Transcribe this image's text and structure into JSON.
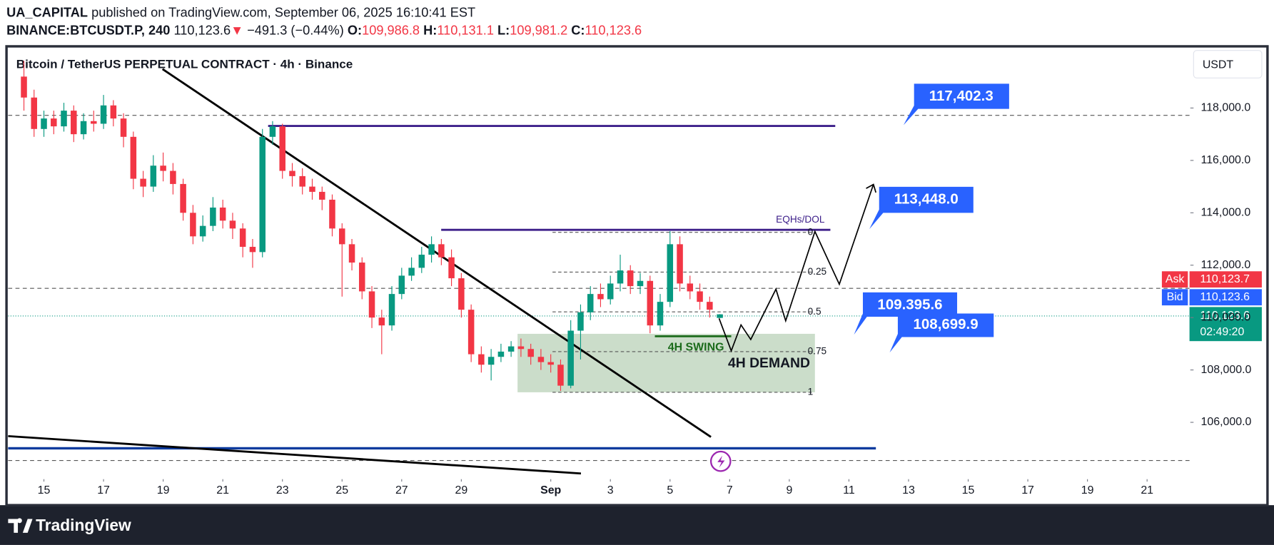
{
  "header": {
    "author": "UA_CAPITAL",
    "published": "published on TradingView.com, September 06, 2025 16:10:41 EST",
    "symbol": "BINANCE:BTCUSDT.P, 240",
    "last": "110,123.6",
    "arrow": "▼",
    "change": "−491.3 (−0.44%)",
    "o_label": "O:",
    "o": "109,986.8",
    "h_label": "H:",
    "h": "110,131.1",
    "l_label": "L:",
    "l": "109,981.2",
    "c_label": "C:",
    "c": "110,123.6"
  },
  "chart_data": {
    "type": "candlestick",
    "title": "Bitcoin / TetherUS PERPETUAL CONTRACT · 4h · Binance",
    "currency": "USDT",
    "x": [
      14.33,
      14.67,
      15,
      15.33,
      15.67,
      16,
      16.33,
      16.67,
      17,
      17.33,
      17.67,
      18,
      18.33,
      18.67,
      19,
      19.33,
      19.67,
      20,
      20.33,
      20.67,
      21,
      21.33,
      21.67,
      22,
      22.33,
      22.67,
      23,
      23.33,
      23.67,
      24,
      24.33,
      24.67,
      25,
      25.33,
      25.67,
      26,
      26.33,
      26.67,
      27,
      27.33,
      27.67,
      28,
      28.33,
      28.67,
      29,
      29.33,
      29.67,
      30,
      30.33,
      30.67,
      31,
      31.33,
      31.67,
      32,
      32.33,
      32.67,
      33,
      33.33,
      33.67,
      34,
      34.33,
      34.67,
      35,
      35.33,
      35.67,
      36,
      36.33,
      36.67,
      37,
      37.33,
      37.67
    ],
    "open": [
      119200,
      118400,
      117200,
      117600,
      117300,
      117900,
      117000,
      117500,
      117400,
      118100,
      117600,
      116900,
      115300,
      115000,
      115800,
      115600,
      115100,
      114000,
      113100,
      113500,
      114200,
      113700,
      113400,
      112700,
      112500,
      116900,
      117300,
      115600,
      115400,
      115000,
      114800,
      114500,
      113400,
      112800,
      112100,
      111000,
      110000,
      109700,
      110900,
      111600,
      111900,
      112400,
      112800,
      112300,
      111500,
      110300,
      108600,
      108200,
      108500,
      108700,
      108900,
      108800,
      108500,
      108300,
      108200,
      107400,
      109500,
      110200,
      110900,
      110700,
      111300,
      111800,
      111200,
      111400,
      109700,
      110600,
      112800,
      111300,
      111000,
      110600,
      109986.8
    ],
    "high": [
      119800,
      118700,
      117900,
      117900,
      118200,
      118100,
      117800,
      117900,
      118500,
      118300,
      117800,
      117100,
      115600,
      116200,
      116300,
      115900,
      115300,
      114300,
      113900,
      114600,
      114500,
      114000,
      113600,
      113000,
      117200,
      117500,
      117400,
      115900,
      115700,
      115300,
      115000,
      114700,
      113600,
      113000,
      112300,
      111200,
      110300,
      111200,
      111900,
      112300,
      112700,
      113100,
      113000,
      112600,
      111700,
      110500,
      108900,
      108800,
      109000,
      109100,
      109200,
      109000,
      108800,
      108600,
      108400,
      109900,
      110500,
      111200,
      111300,
      111600,
      112400,
      112000,
      111700,
      111600,
      110900,
      113300,
      113100,
      111600,
      111300,
      110800,
      110131.1
    ],
    "low": [
      117900,
      116900,
      116900,
      117000,
      117100,
      116700,
      116800,
      117100,
      117200,
      117300,
      116500,
      114900,
      114600,
      114800,
      115200,
      114700,
      113700,
      112800,
      112900,
      113300,
      113400,
      113000,
      112300,
      111900,
      112300,
      116600,
      115300,
      115000,
      114700,
      114500,
      114100,
      113100,
      110800,
      111800,
      110700,
      109600,
      108600,
      109500,
      110700,
      111400,
      111700,
      112100,
      112000,
      111200,
      110000,
      108300,
      107900,
      107600,
      108300,
      108500,
      108500,
      108200,
      108000,
      107900,
      107200,
      107300,
      108400,
      109900,
      110400,
      110500,
      111000,
      110900,
      110900,
      109400,
      109500,
      110400,
      111000,
      110700,
      110300,
      110000,
      109981.2
    ],
    "close": [
      118400,
      117200,
      117600,
      117300,
      117900,
      117000,
      117500,
      117400,
      118100,
      117600,
      116900,
      115300,
      115000,
      115800,
      115600,
      115100,
      114000,
      113100,
      113500,
      114200,
      113700,
      113400,
      112700,
      112500,
      116900,
      117300,
      115600,
      115400,
      115000,
      114800,
      114500,
      113400,
      112800,
      112100,
      111000,
      110000,
      109700,
      110900,
      111600,
      111900,
      112400,
      112800,
      112300,
      111500,
      110300,
      108600,
      108200,
      108500,
      108700,
      108900,
      108800,
      108500,
      108300,
      108200,
      107400,
      109500,
      110200,
      110900,
      110700,
      111300,
      111800,
      111200,
      111400,
      109700,
      110600,
      112800,
      111300,
      111000,
      110600,
      110300,
      110123.6
    ],
    "colors": {
      "up": "#089981",
      "down": "#f23645"
    },
    "xlim": [
      13.8,
      53.45
    ],
    "xticks": [
      15,
      17,
      19,
      21,
      23,
      25,
      27,
      29,
      {
        "value": 32,
        "label": "Sep"
      },
      {
        "value": 34,
        "label": "3"
      },
      {
        "value": 36,
        "label": "5"
      },
      {
        "value": 38,
        "label": "7"
      },
      {
        "value": 40,
        "label": "9"
      },
      {
        "value": 42,
        "label": "11"
      },
      {
        "value": 44,
        "label": "13"
      },
      {
        "value": 46,
        "label": "15"
      },
      {
        "value": 48,
        "label": "17"
      },
      {
        "value": 50,
        "label": "19"
      },
      {
        "value": 52,
        "label": "21"
      }
    ],
    "ylim": [
      103830,
      120200
    ],
    "yticks": [
      {
        "value": 106000,
        "label": "106,000.0"
      },
      {
        "value": 108000,
        "label": "108,000.0"
      },
      {
        "value": 110000,
        "label": "110,000.0"
      },
      {
        "value": 112000,
        "label": "112,000.0"
      },
      {
        "value": 114000,
        "label": "114,000.0"
      },
      {
        "value": 116000,
        "label": "116,000.0"
      },
      {
        "value": 118000,
        "label": "118,000.0"
      }
    ],
    "grid": false,
    "annotations": {
      "eqhs": "EQHs/DOL",
      "fib_levels": [
        0,
        0.25,
        0.5,
        0.75,
        1
      ],
      "swing": "4H SWING",
      "demand": "4H DEMAND",
      "callouts": [
        "117,402.3",
        "113,448.0",
        "109.395.6",
        "108,699.9"
      ]
    },
    "price_tags": {
      "ask_label": "Ask",
      "ask": "110,123.7",
      "bid_label": "Bid",
      "bid": "110,123.6",
      "last": "110,123.6",
      "countdown": "02:49:20"
    }
  },
  "footer": {
    "brand": "TradingView"
  }
}
